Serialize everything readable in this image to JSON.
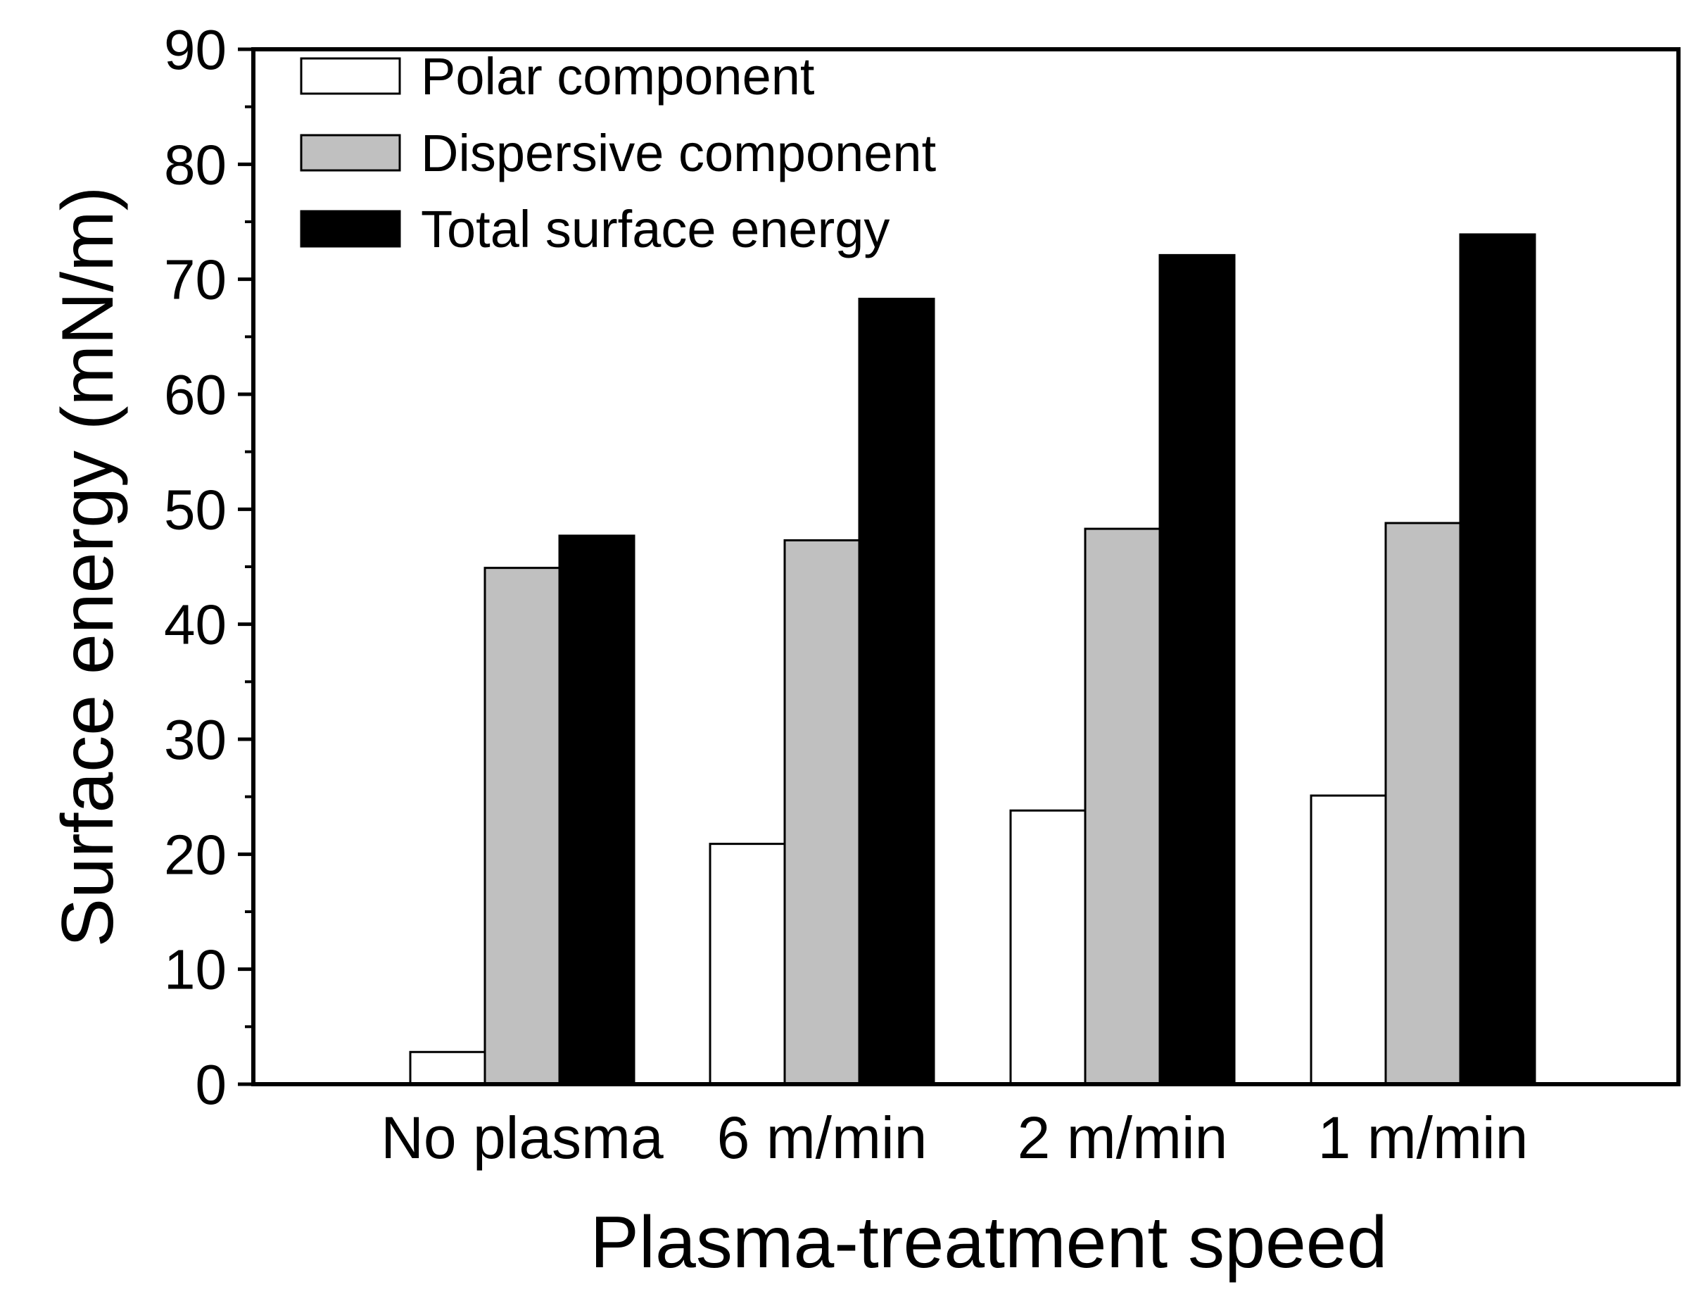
{
  "chart_data": {
    "type": "bar",
    "title": "",
    "xlabel": "Plasma-treatment speed",
    "ylabel": "Surface energy (mN/m)",
    "ylim": [
      0,
      90
    ],
    "yticks": [
      "0",
      "10",
      "20",
      "30",
      "40",
      "50",
      "60",
      "70",
      "80",
      "90"
    ],
    "categories": [
      "No plasma",
      "6 m/min",
      "2 m/min",
      "1 m/min"
    ],
    "series": [
      {
        "name": "Polar component",
        "color": "#ffffff",
        "values": [
          2.8,
          20.9,
          23.8,
          25.1
        ]
      },
      {
        "name": "Dispersive component",
        "color": "#c0c0c0",
        "values": [
          44.9,
          47.3,
          48.3,
          48.8
        ]
      },
      {
        "name": "Total surface energy",
        "color": "#000000",
        "values": [
          47.7,
          68.3,
          72.1,
          73.9
        ]
      }
    ],
    "legend_position": "top-left",
    "grid": false
  }
}
